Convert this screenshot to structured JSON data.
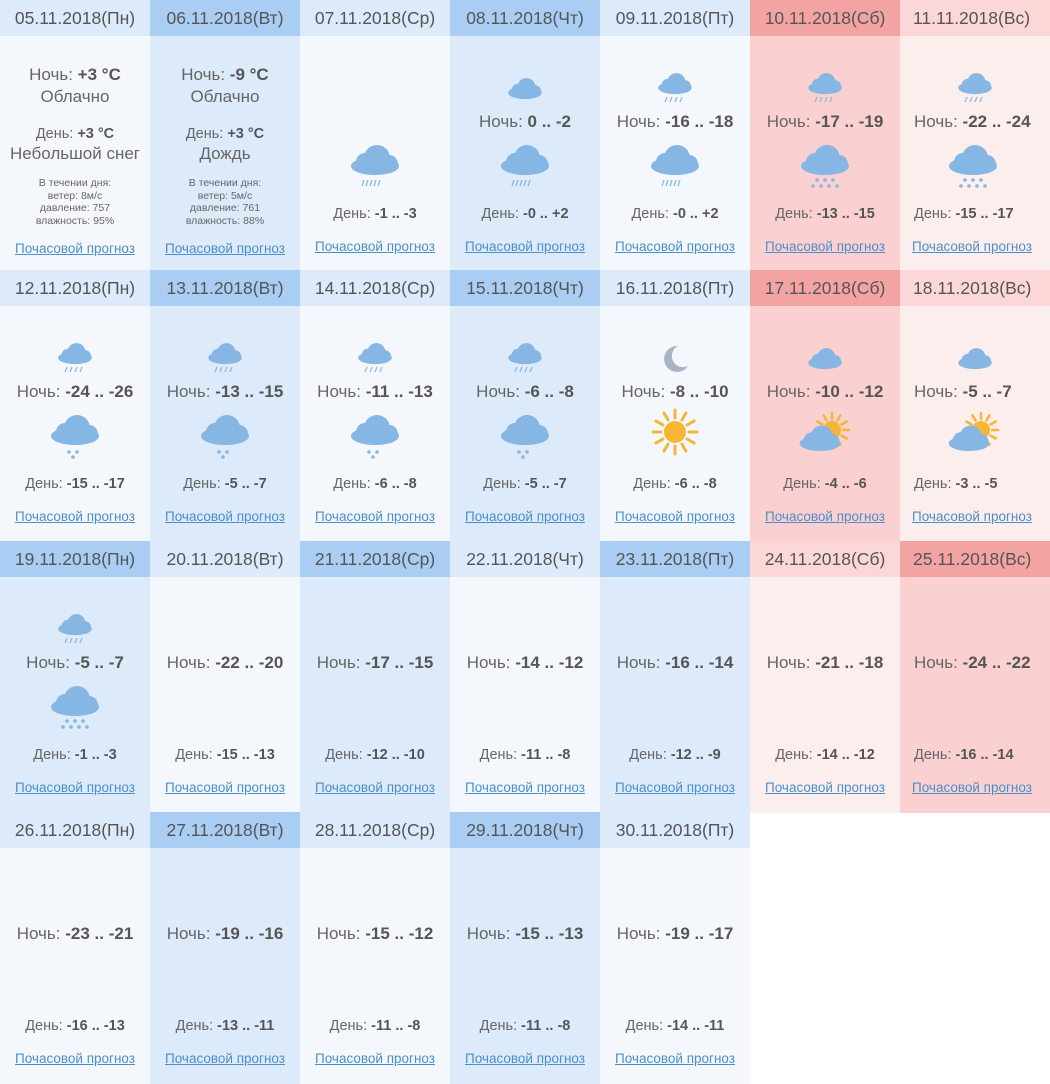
{
  "labels": {
    "night": "Ночь:",
    "day": "День:",
    "hourly": "Почасовой прогноз",
    "during_day": "В течении дня:",
    "wind": "ветер:",
    "pressure": "давление:",
    "humidity": "влажность:"
  },
  "colors": {
    "weekday_light": "#f4f8fd",
    "weekday_medium": "#dceafa",
    "weekday_header_light": "#dceafa",
    "weekday_header_medium": "#a9cdf3",
    "weekend_light": "#fdeeee",
    "weekend_medium": "#fbd0d0",
    "weekend_header_light": "#fbd7d7",
    "weekend_header_medium": "#f4a3a3",
    "icon_cloud": "#86b6e3",
    "icon_sun": "#f5b635",
    "icon_moon": "#aab3c4",
    "link": "#4a8fc9"
  },
  "weeks": [
    {
      "days": [
        {
          "date": "05.11.2018(Пн)",
          "shade": "light",
          "detail": true,
          "night_temp": "+3 °C",
          "night_desc": "Облачно",
          "day_temp": "+3 °C",
          "day_desc": "Небольшой снег",
          "wind": "8м/с",
          "pressure": "757",
          "humidity": "95%"
        },
        {
          "date": "06.11.2018(Вт)",
          "shade": "medium",
          "detail": true,
          "night_temp": "-9 °C",
          "night_desc": "Облачно",
          "day_temp": "+3 °C",
          "day_desc": "Дождь",
          "wind": "5м/с",
          "pressure": "761",
          "humidity": "88%"
        },
        {
          "date": "07.11.2018(Ср)",
          "shade": "light",
          "night_icon": "",
          "night": "",
          "day_icon": "cloud-rain-icon",
          "day": "-1 .. -3"
        },
        {
          "date": "08.11.2018(Чт)",
          "shade": "medium",
          "night_icon": "cloud-icon",
          "night": "0 .. -2",
          "day_icon": "cloud-rain-icon",
          "day": "-0 .. +2"
        },
        {
          "date": "09.11.2018(Пт)",
          "shade": "light",
          "night_icon": "cloud-rain-icon",
          "night": "-16 .. -18",
          "day_icon": "cloud-rain-icon",
          "day": "-0 .. +2"
        },
        {
          "date": "10.11.2018(Сб)",
          "shade": "weekend-medium",
          "night_icon": "cloud-rain-icon",
          "night": "-17 .. -19",
          "day_icon": "cloud-snow-icon",
          "day": "-13 .. -15"
        },
        {
          "date": "11.11.2018(Вс)",
          "shade": "weekend-light",
          "night_icon": "cloud-rain-icon",
          "night": "-22 .. -24",
          "day_icon": "cloud-snow-icon",
          "day": "-15 .. -17"
        }
      ]
    },
    {
      "days": [
        {
          "date": "12.11.2018(Пн)",
          "shade": "light",
          "night_icon": "cloud-rain-icon",
          "night": "-24 .. -26",
          "day_icon": "cloud-light-snow-icon",
          "day": "-15 .. -17"
        },
        {
          "date": "13.11.2018(Вт)",
          "shade": "medium",
          "night_icon": "cloud-rain-icon",
          "night": "-13 .. -15",
          "day_icon": "cloud-light-snow-icon",
          "day": "-5 .. -7"
        },
        {
          "date": "14.11.2018(Ср)",
          "shade": "light",
          "night_icon": "cloud-rain-icon",
          "night": "-11 .. -13",
          "day_icon": "cloud-light-snow-icon",
          "day": "-6 .. -8"
        },
        {
          "date": "15.11.2018(Чт)",
          "shade": "medium",
          "night_icon": "cloud-rain-icon",
          "night": "-6 .. -8",
          "day_icon": "cloud-light-snow-icon",
          "day": "-5 .. -7"
        },
        {
          "date": "16.11.2018(Пт)",
          "shade": "light",
          "night_icon": "moon-icon",
          "night": "-8 .. -10",
          "day_icon": "sun-icon",
          "day": "-6 .. -8"
        },
        {
          "date": "17.11.2018(Сб)",
          "shade": "weekend-medium",
          "night_icon": "cloud-icon",
          "night": "-10 .. -12",
          "day_icon": "sun-cloud-icon",
          "day": "-4 .. -6"
        },
        {
          "date": "18.11.2018(Вс)",
          "shade": "weekend-light",
          "night_icon": "cloud-icon",
          "night": "-5 .. -7",
          "day_icon": "sun-cloud-icon",
          "day": "-3 .. -5"
        }
      ]
    },
    {
      "days": [
        {
          "date": "19.11.2018(Пн)",
          "shade": "medium",
          "night_icon": "cloud-rain-icon",
          "night": "-5 .. -7",
          "day_icon": "cloud-snow-icon",
          "day": "-1 .. -3"
        },
        {
          "date": "20.11.2018(Вт)",
          "shade": "light",
          "night_icon": "",
          "night": "-22 .. -20",
          "day_icon": "",
          "day": "-15 .. -13"
        },
        {
          "date": "21.11.2018(Ср)",
          "shade": "medium",
          "night_icon": "",
          "night": "-17 .. -15",
          "day_icon": "",
          "day": "-12 .. -10"
        },
        {
          "date": "22.11.2018(Чт)",
          "shade": "light",
          "night_icon": "",
          "night": "-14 .. -12",
          "day_icon": "",
          "day": "-11 .. -8"
        },
        {
          "date": "23.11.2018(Пт)",
          "shade": "medium",
          "night_icon": "",
          "night": "-16 .. -14",
          "day_icon": "",
          "day": "-12 .. -9"
        },
        {
          "date": "24.11.2018(Сб)",
          "shade": "weekend-light",
          "night_icon": "",
          "night": "-21 .. -18",
          "day_icon": "",
          "day": "-14 .. -12"
        },
        {
          "date": "25.11.2018(Вс)",
          "shade": "weekend-medium",
          "night_icon": "",
          "night": "-24 .. -22",
          "day_icon": "",
          "day": "-16 .. -14"
        }
      ]
    },
    {
      "days": [
        {
          "date": "26.11.2018(Пн)",
          "shade": "light",
          "night_icon": "",
          "night": "-23 .. -21",
          "day_icon": "",
          "day": "-16 .. -13"
        },
        {
          "date": "27.11.2018(Вт)",
          "shade": "medium",
          "night_icon": "",
          "night": "-19 .. -16",
          "day_icon": "",
          "day": "-13 .. -11"
        },
        {
          "date": "28.11.2018(Ср)",
          "shade": "light",
          "night_icon": "",
          "night": "-15 .. -12",
          "day_icon": "",
          "day": "-11 .. -8"
        },
        {
          "date": "29.11.2018(Чт)",
          "shade": "medium",
          "night_icon": "",
          "night": "-15 .. -13",
          "day_icon": "",
          "day": "-11 .. -8"
        },
        {
          "date": "30.11.2018(Пт)",
          "shade": "light",
          "night_icon": "",
          "night": "-19 .. -17",
          "day_icon": "",
          "day": "-14 .. -11"
        }
      ]
    }
  ]
}
